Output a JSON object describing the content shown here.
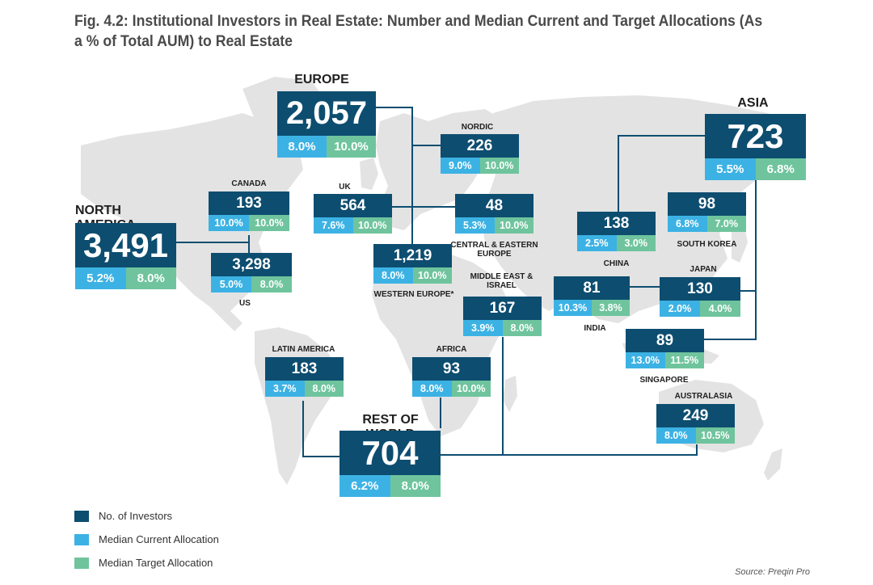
{
  "title": "Fig. 4.2: Institutional Investors in Real Estate: Number and Median Current and Target Allocations (As a % of Total AUM) to Real Estate",
  "colors": {
    "count": "#0d4d70",
    "current": "#3cb2e4",
    "target": "#6fc49d",
    "land": "#e3e3e3",
    "connector": "#0d4d70"
  },
  "regions": {
    "north_america": {
      "label": "NORTH AMERICA",
      "count": "3,491",
      "current": "5.2%",
      "target": "8.0%"
    },
    "canada": {
      "label": "CANADA",
      "count": "193",
      "current": "10.0%",
      "target": "10.0%"
    },
    "us": {
      "label": "US",
      "count": "3,298",
      "current": "5.0%",
      "target": "8.0%"
    },
    "europe": {
      "label": "EUROPE",
      "count": "2,057",
      "current": "8.0%",
      "target": "10.0%"
    },
    "uk": {
      "label": "UK",
      "count": "564",
      "current": "7.6%",
      "target": "10.0%"
    },
    "nordic": {
      "label": "NORDIC",
      "count": "226",
      "current": "9.0%",
      "target": "10.0%"
    },
    "central_eastern_europe": {
      "label": "CENTRAL & EASTERN EUROPE",
      "count": "48",
      "current": "5.3%",
      "target": "10.0%"
    },
    "western_europe": {
      "label": "WESTERN EUROPE*",
      "count": "1,219",
      "current": "8.0%",
      "target": "10.0%"
    },
    "middle_east_israel": {
      "label": "MIDDLE EAST & ISRAEL",
      "count": "167",
      "current": "3.9%",
      "target": "8.0%"
    },
    "asia": {
      "label": "ASIA",
      "count": "723",
      "current": "5.5%",
      "target": "6.8%"
    },
    "china": {
      "label": "CHINA",
      "count": "138",
      "current": "2.5%",
      "target": "3.0%"
    },
    "south_korea": {
      "label": "SOUTH KOREA",
      "count": "98",
      "current": "6.8%",
      "target": "7.0%"
    },
    "japan": {
      "label": "JAPAN",
      "count": "130",
      "current": "2.0%",
      "target": "4.0%"
    },
    "india": {
      "label": "INDIA",
      "count": "81",
      "current": "10.3%",
      "target": "3.8%"
    },
    "singapore": {
      "label": "SINGAPORE",
      "count": "89",
      "current": "13.0%",
      "target": "11.5%"
    },
    "australasia": {
      "label": "AUSTRALASIA",
      "count": "249",
      "current": "8.0%",
      "target": "10.5%"
    },
    "latin_america": {
      "label": "LATIN AMERICA",
      "count": "183",
      "current": "3.7%",
      "target": "8.0%"
    },
    "africa": {
      "label": "AFRICA",
      "count": "93",
      "current": "8.0%",
      "target": "10.0%"
    },
    "rest_of_world": {
      "label": "REST OF WORLD",
      "count": "704",
      "current": "6.2%",
      "target": "8.0%"
    }
  },
  "legend": {
    "items": [
      {
        "label": "No. of Investors"
      },
      {
        "label": "Median Current Allocation"
      },
      {
        "label": "Median Target Allocation"
      }
    ]
  },
  "source": "Source: Preqin Pro"
}
